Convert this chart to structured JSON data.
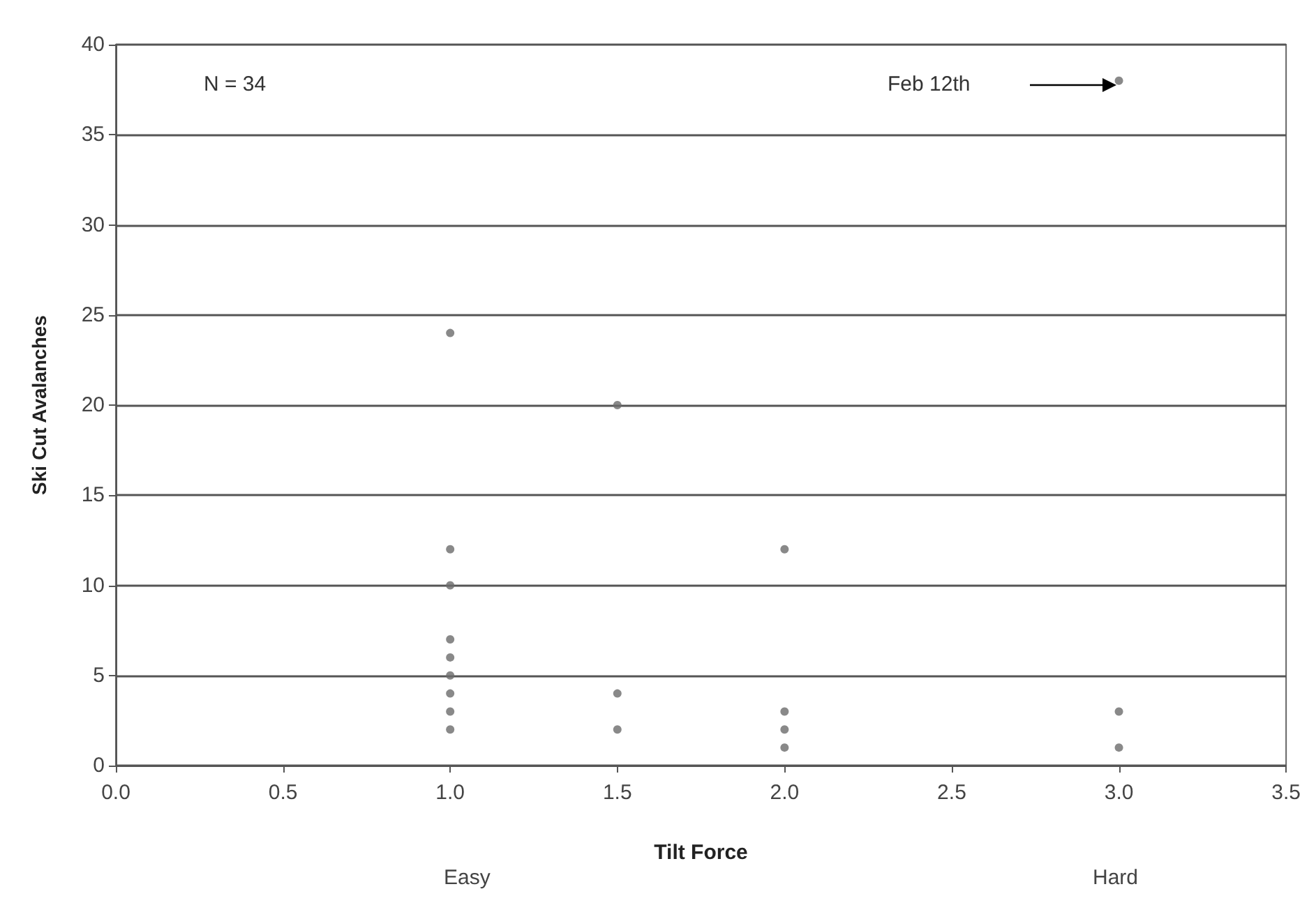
{
  "chart_data": {
    "type": "scatter",
    "xlabel": "Tilt Force",
    "ylabel": "Ski Cut Avalanches",
    "x": [
      1,
      1,
      1,
      1,
      1,
      1,
      1,
      1,
      1,
      1.5,
      1.5,
      1.5,
      2,
      2,
      2,
      2,
      3,
      3,
      3
    ],
    "values": [
      24,
      12,
      10,
      7,
      6,
      5,
      4,
      3,
      2,
      20,
      4,
      2,
      12,
      3,
      2,
      1,
      38,
      3,
      1
    ],
    "color": "#6b6b6b",
    "marker": "circle",
    "xlim": [
      0,
      3.5
    ],
    "xticks": [
      {
        "value": 0,
        "label": "0.0"
      },
      {
        "value": 0.5,
        "label": "0.5"
      },
      {
        "value": 1,
        "label": "1.0"
      },
      {
        "value": 1.5,
        "label": "1.5"
      },
      {
        "value": 2,
        "label": "2.0"
      },
      {
        "value": 2.5,
        "label": "2.5"
      },
      {
        "value": 3,
        "label": "3.0"
      },
      {
        "value": 3.5,
        "label": "3.5"
      }
    ],
    "ylim": [
      0,
      40
    ],
    "yticks": [
      0,
      5,
      10,
      15,
      20,
      25,
      30,
      35,
      40
    ],
    "grid": "y",
    "annotations": [
      "N = 34",
      "Feb 12th",
      "Easy",
      "Hard"
    ]
  }
}
